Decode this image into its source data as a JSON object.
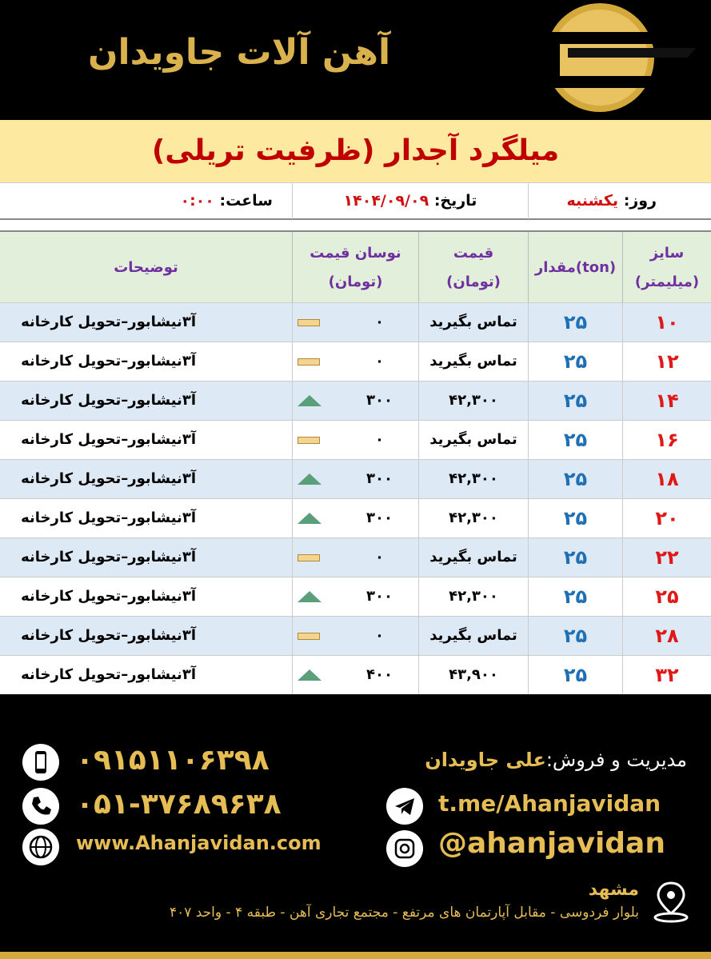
{
  "header": {
    "brand": "آهن آلات جاویدان"
  },
  "title": "میلگرد آجدار (ظرفیت تریلی)",
  "info": {
    "day_label": "روز:",
    "day": "یکشنبه",
    "date_label": "تاریخ:",
    "date": "۱۴۰۴/۰۹/۰۹",
    "time_label": "ساعت:",
    "time": "۰:۰۰"
  },
  "table": {
    "columns": [
      {
        "name": "سایز",
        "unit": "(میلیمتر)"
      },
      {
        "name": "مقدار(ton)"
      },
      {
        "name": "قیمت",
        "unit": "(تومان)"
      },
      {
        "name": "نوسان قیمت",
        "unit": "(تومان)"
      },
      {
        "name": "توضیحات"
      }
    ],
    "rows": [
      {
        "size": "۱۰",
        "quantity": "۲۵",
        "price": "تماس بگیرید",
        "change": "۰",
        "trend": "none",
        "description": "آ۳نیشابور–تحویل کارخانه"
      },
      {
        "size": "۱۲",
        "quantity": "۲۵",
        "price": "تماس بگیرید",
        "change": "۰",
        "trend": "none",
        "description": "آ۳نیشابور–تحویل کارخانه"
      },
      {
        "size": "۱۴",
        "quantity": "۲۵",
        "price": "۴۲,۳۰۰",
        "change": "۳۰۰",
        "trend": "up",
        "description": "آ۳نیشابور–تحویل کارخانه"
      },
      {
        "size": "۱۶",
        "quantity": "۲۵",
        "price": "تماس بگیرید",
        "change": "۰",
        "trend": "none",
        "description": "آ۳نیشابور–تحویل کارخانه"
      },
      {
        "size": "۱۸",
        "quantity": "۲۵",
        "price": "۴۲,۳۰۰",
        "change": "۳۰۰",
        "trend": "up",
        "description": "آ۳نیشابور–تحویل کارخانه"
      },
      {
        "size": "۲۰",
        "quantity": "۲۵",
        "price": "۴۲,۳۰۰",
        "change": "۳۰۰",
        "trend": "up",
        "description": "آ۳نیشابور–تحویل کارخانه"
      },
      {
        "size": "۲۲",
        "quantity": "۲۵",
        "price": "تماس بگیرید",
        "change": "۰",
        "trend": "none",
        "description": "آ۳نیشابور–تحویل کارخانه"
      },
      {
        "size": "۲۵",
        "quantity": "۲۵",
        "price": "۴۲,۳۰۰",
        "change": "۳۰۰",
        "trend": "up",
        "description": "آ۳نیشابور–تحویل کارخانه"
      },
      {
        "size": "۲۸",
        "quantity": "۲۵",
        "price": "تماس بگیرید",
        "change": "۰",
        "trend": "none",
        "description": "آ۳نیشابور–تحویل کارخانه"
      },
      {
        "size": "۳۲",
        "quantity": "۲۵",
        "price": "۴۳,۹۰۰",
        "change": "۴۰۰",
        "trend": "up",
        "description": "آ۳نیشابور–تحویل کارخانه"
      }
    ]
  },
  "footer": {
    "manager_label": "مدیریت و فروش:",
    "manager": "علی جاویدان",
    "mobile": "۰۹۱۵۱۱۰۶۳۹۸",
    "phone": "۰۵۱-۳۷۶۸۹۶۳۸",
    "website": "www.Ahanjavidan.com",
    "telegram": "t.me/Ahanjavidan",
    "instagram": "@ahanjavidan",
    "city": "مشهد",
    "address": "بلوار فردوسی - مقابل آپارتمان های مرتفع - مجتمع تجاری آهن - طبقه ۴ - واحد ۴۰۷"
  }
}
